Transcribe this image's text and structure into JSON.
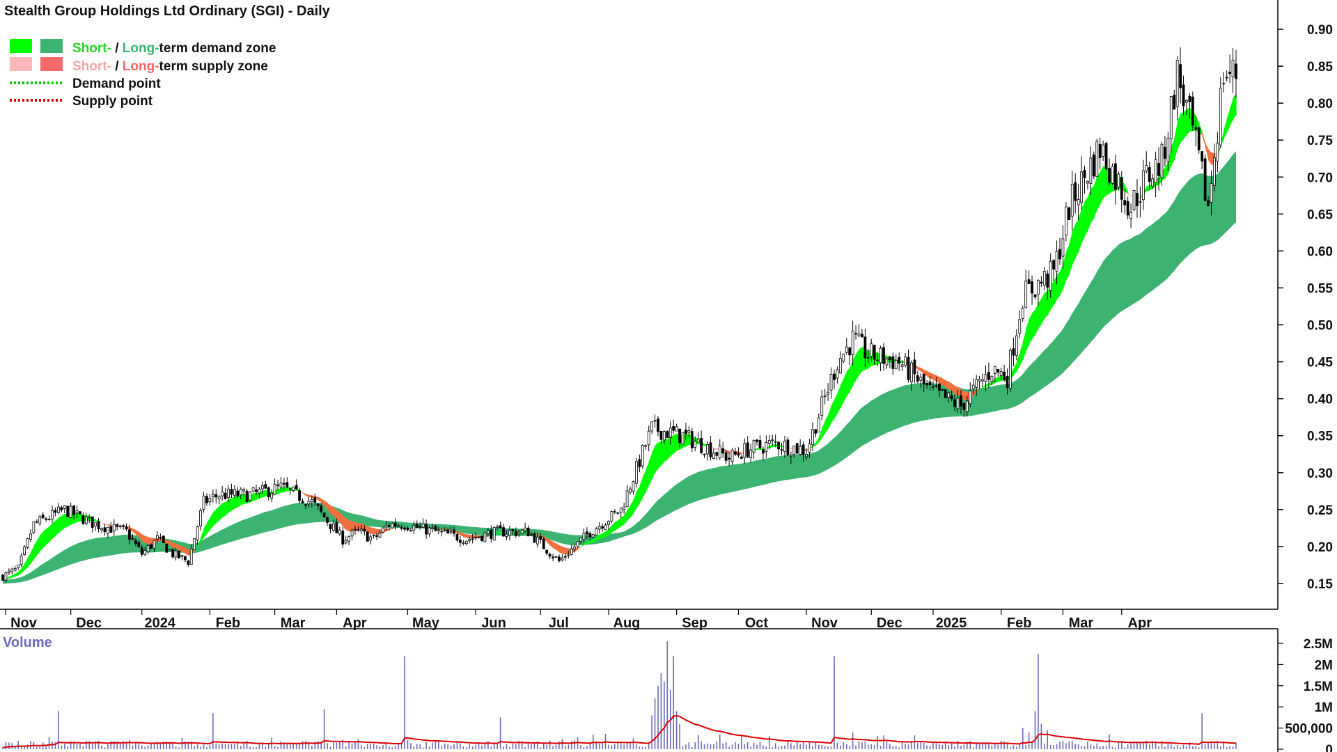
{
  "chart_data": {
    "type": "candlestick",
    "title": "Stealth Group Holdings Ltd Ordinary (SGI) - Daily",
    "legend": [
      {
        "key": "demand_zone",
        "parts": [
          {
            "text": "Short-",
            "color": "#22d822"
          },
          {
            "text": " / ",
            "color": "#111111"
          },
          {
            "text": "Long-",
            "color": "#3cb371"
          },
          {
            "text": "term demand zone",
            "color": "#111111"
          }
        ],
        "swatches": [
          "#00ff00",
          "#3cb371"
        ]
      },
      {
        "key": "supply_zone",
        "parts": [
          {
            "text": "Short-",
            "color": "#f4a6a6"
          },
          {
            "text": " / ",
            "color": "#111111"
          },
          {
            "text": "Long-",
            "color": "#f46a6a"
          },
          {
            "text": "term supply zone",
            "color": "#111111"
          }
        ],
        "swatches": [
          "#ffb6b6",
          "#f46a6a"
        ]
      },
      {
        "key": "demand_point",
        "parts": [
          {
            "text": "Demand point",
            "color": "#111111"
          }
        ],
        "line_color": "#00cc00"
      },
      {
        "key": "supply_point",
        "parts": [
          {
            "text": "Supply point",
            "color": "#111111"
          }
        ],
        "line_color": "#dd0000"
      }
    ],
    "x_axis_labels": [
      "Nov",
      "Dec",
      "2024",
      "Feb",
      "Mar",
      "Apr",
      "May",
      "Jun",
      "Jul",
      "Aug",
      "Sep",
      "Oct",
      "Nov",
      "Dec",
      "2025",
      "Feb",
      "Mar",
      "Apr"
    ],
    "y_ticks": [
      "0.90",
      "0.85",
      "0.80",
      "0.75",
      "0.70",
      "0.65",
      "0.60",
      "0.55",
      "0.50",
      "0.45",
      "0.40",
      "0.35",
      "0.30",
      "0.25",
      "0.20",
      "0.15"
    ],
    "ylim": [
      0.115,
      0.925
    ],
    "price_anchors": {
      "dates_index": [
        0,
        5,
        10,
        20,
        30,
        40,
        45,
        50,
        55,
        60,
        65,
        70,
        80,
        90,
        100,
        110,
        115,
        120,
        125,
        130,
        140,
        150,
        160,
        170,
        180,
        190,
        200,
        210,
        220,
        225,
        230,
        235,
        240,
        250,
        260,
        270,
        275,
        280,
        290,
        300,
        310,
        320,
        325,
        330,
        340,
        345,
        355,
        365,
        370,
        375,
        380,
        385,
        390,
        395
      ],
      "close": [
        0.16,
        0.17,
        0.23,
        0.25,
        0.23,
        0.22,
        0.19,
        0.21,
        0.19,
        0.18,
        0.26,
        0.27,
        0.27,
        0.28,
        0.26,
        0.21,
        0.22,
        0.21,
        0.23,
        0.23,
        0.22,
        0.21,
        0.22,
        0.22,
        0.18,
        0.22,
        0.25,
        0.36,
        0.35,
        0.34,
        0.33,
        0.32,
        0.33,
        0.34,
        0.33,
        0.45,
        0.48,
        0.46,
        0.45,
        0.41,
        0.39,
        0.44,
        0.43,
        0.54,
        0.57,
        0.66,
        0.74,
        0.66,
        0.7,
        0.72,
        0.84,
        0.76,
        0.66,
        0.84
      ]
    },
    "short_term_band": {
      "upper_end": 0.73,
      "lower_end": 0.69
    },
    "long_term_band": {
      "upper_end": 0.52,
      "lower_end": 0.44
    },
    "volume": {
      "title": "Volume",
      "y_ticks": [
        "2.5M",
        "2M",
        "1.5M",
        "1M",
        "500,000",
        "0"
      ],
      "ylim": [
        0,
        2500000
      ],
      "average_line_color": "#dd0000",
      "bar_color": "#6a6ab8",
      "notable_spikes": [
        {
          "index": 18,
          "value": 900000
        },
        {
          "index": 68,
          "value": 850000
        },
        {
          "index": 104,
          "value": 950000
        },
        {
          "index": 130,
          "value": 2200000
        },
        {
          "index": 161,
          "value": 750000
        },
        {
          "index": 212,
          "value": 1500000
        },
        {
          "index": 215,
          "value": 2550000
        },
        {
          "index": 217,
          "value": 2200000
        },
        {
          "index": 269,
          "value": 2200000
        },
        {
          "index": 335,
          "value": 2250000
        },
        {
          "index": 388,
          "value": 850000
        }
      ]
    }
  },
  "colors": {
    "short_demand": "#00ff00",
    "long_demand": "#3cb371",
    "short_supply": "#ffb6b6",
    "long_supply": "#f07040",
    "candle_up": "#ffffff",
    "candle_down": "#000000",
    "wick": "#000000",
    "axis": "#000000"
  }
}
